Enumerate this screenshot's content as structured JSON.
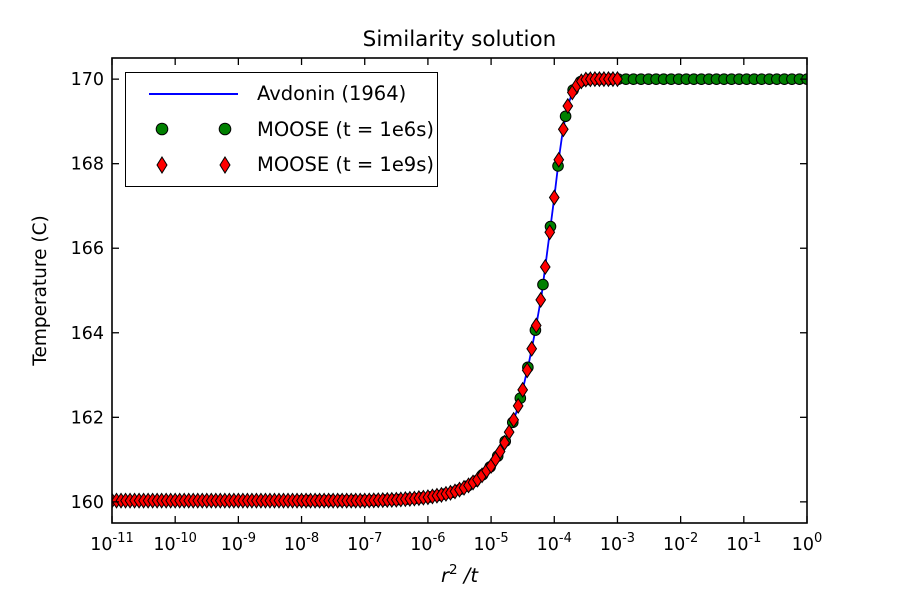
{
  "figure": {
    "title": "Similarity solution",
    "xlabel": {
      "base": "r",
      "sup": "2",
      "rest": " /t"
    },
    "ylabel": "Temperature (C)"
  },
  "chart_data": {
    "type": "line",
    "title": "Similarity solution",
    "xlabel": "r^2/t",
    "ylabel": "Temperature (C)",
    "x_scale": "log10",
    "xlim_log10": [
      -11,
      0
    ],
    "ylim": [
      159.5,
      170.5
    ],
    "x_tick_exponents": [
      -11,
      -10,
      -9,
      -8,
      -7,
      -6,
      -5,
      -4,
      -3,
      -2,
      -1,
      0
    ],
    "y_ticks": [
      160,
      162,
      164,
      166,
      168,
      170
    ],
    "grid": false,
    "legend_position": "upper-left",
    "background": "#ffffff",
    "axis_color": "#000000",
    "solution_curve": {
      "comment": "Avdonin similarity solution T vs log10(r^2/t), read from plot",
      "log10_x": [
        -11.0,
        -7.0,
        -6.5,
        -6.2,
        -6.0,
        -5.8,
        -5.6,
        -5.4,
        -5.2,
        -5.0,
        -4.9,
        -4.8,
        -4.7,
        -4.6,
        -4.5,
        -4.4,
        -4.3,
        -4.2,
        -4.1,
        -4.0,
        -3.9,
        -3.8,
        -3.7,
        -3.6,
        -3.5,
        -3.4,
        0.0
      ],
      "temperature": [
        160.03,
        160.03,
        160.05,
        160.08,
        160.11,
        160.16,
        160.23,
        160.35,
        160.54,
        160.85,
        161.07,
        161.35,
        161.7,
        162.12,
        162.65,
        163.3,
        164.05,
        164.9,
        166.05,
        167.2,
        168.45,
        169.3,
        169.75,
        169.93,
        169.99,
        170.0,
        170.0
      ]
    },
    "series": [
      {
        "name": "Avdonin (1964)",
        "kind": "line",
        "color": "#0000ff",
        "line_width": 1.8,
        "source": "solution_curve"
      },
      {
        "name": "MOOSE (t = 1e6s)",
        "kind": "scatter",
        "marker": "circle",
        "color": "#008000",
        "edge_color": "#000000",
        "log10_x_start": -8,
        "log10_x_end": 0,
        "points": 68,
        "y": "on solution_curve"
      },
      {
        "name": "MOOSE (t = 1e9s)",
        "kind": "scatter",
        "marker": "thin-diamond",
        "color": "#ff0000",
        "edge_color": "#000000",
        "log10_x_start": -11,
        "log10_x_end": -3,
        "points": 113,
        "y": "on solution_curve"
      }
    ]
  }
}
